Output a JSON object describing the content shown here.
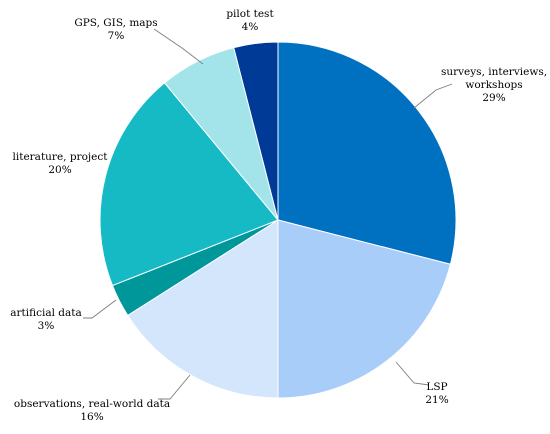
{
  "chart_data": {
    "type": "pie",
    "title": "",
    "start_angle_deg": 0,
    "direction": "clockwise",
    "slices": [
      {
        "label_lines": [
          "surveys, interviews,",
          "workshops"
        ],
        "pct_label": "29%",
        "value": 29,
        "color": "#0070c0"
      },
      {
        "label_lines": [
          "LSP"
        ],
        "pct_label": "21%",
        "value": 21,
        "color": "#a9cdf9"
      },
      {
        "label_lines": [
          "observations, real-world data"
        ],
        "pct_label": "16%",
        "value": 16,
        "color": "#d3e6fb"
      },
      {
        "label_lines": [
          "artificial data"
        ],
        "pct_label": "3%",
        "value": 3,
        "color": "#00979b"
      },
      {
        "label_lines": [
          "literature, project"
        ],
        "pct_label": "20%",
        "value": 20,
        "color": "#16bac5"
      },
      {
        "label_lines": [
          "GPS, GIS, maps"
        ],
        "pct_label": "7%",
        "value": 7,
        "color": "#a3e4ea"
      },
      {
        "label_lines": [
          "pilot test"
        ],
        "pct_label": "4%",
        "value": 4,
        "color": "#003a97"
      }
    ]
  }
}
